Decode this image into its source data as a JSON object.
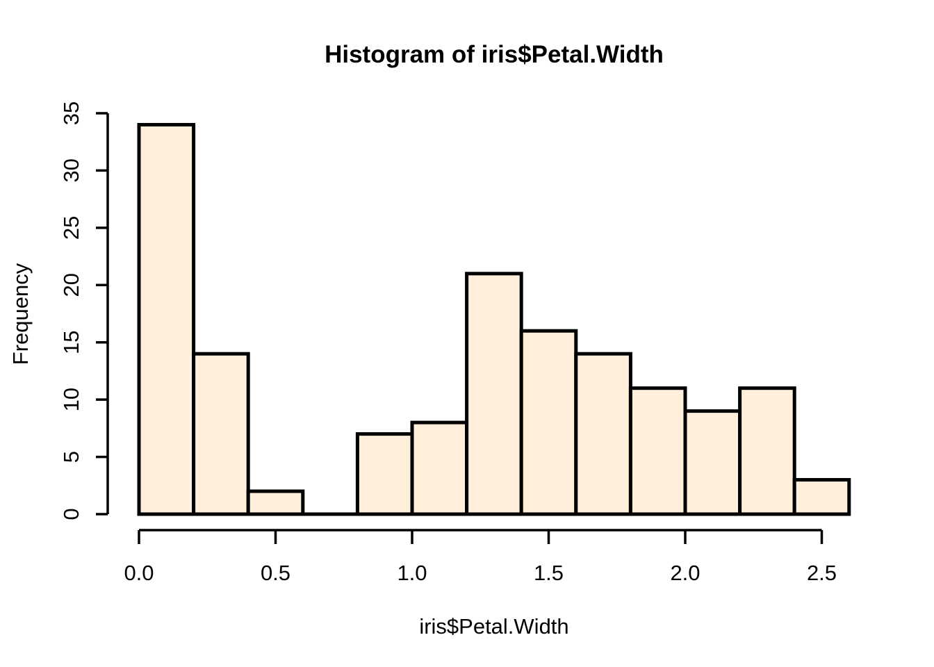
{
  "figure": {
    "background_color": "#FFFFFF"
  },
  "chart_data": {
    "type": "bar",
    "subtype": "histogram",
    "title": "Histogram of iris$Petal.Width",
    "xlabel": "iris$Petal.Width",
    "ylabel": "Frequency",
    "breaks": [
      0.0,
      0.2,
      0.4,
      0.6,
      0.8,
      1.0,
      1.2,
      1.4,
      1.6,
      1.8,
      2.0,
      2.2,
      2.4,
      2.6
    ],
    "counts": [
      34,
      14,
      2,
      0,
      7,
      8,
      21,
      16,
      14,
      11,
      9,
      11,
      3
    ],
    "x_ticks": [
      {
        "v": 0.0,
        "label": "0.0"
      },
      {
        "v": 0.5,
        "label": "0.5"
      },
      {
        "v": 1.0,
        "label": "1.0"
      },
      {
        "v": 1.5,
        "label": "1.5"
      },
      {
        "v": 2.0,
        "label": "2.0"
      },
      {
        "v": 2.5,
        "label": "2.5"
      }
    ],
    "y_ticks": [
      {
        "v": 0,
        "label": "0"
      },
      {
        "v": 5,
        "label": "5"
      },
      {
        "v": 10,
        "label": "10"
      },
      {
        "v": 15,
        "label": "15"
      },
      {
        "v": 20,
        "label": "20"
      },
      {
        "v": 25,
        "label": "25"
      },
      {
        "v": 30,
        "label": "30"
      },
      {
        "v": 35,
        "label": "35"
      }
    ],
    "xlim": [
      0.0,
      2.6
    ],
    "ylim": [
      0,
      35
    ],
    "grid": false,
    "legend": null,
    "bar_fill_color": "#FFEFDB",
    "bar_stroke_color": "#000000",
    "axis_color": "#000000",
    "text_color": "#000000"
  }
}
